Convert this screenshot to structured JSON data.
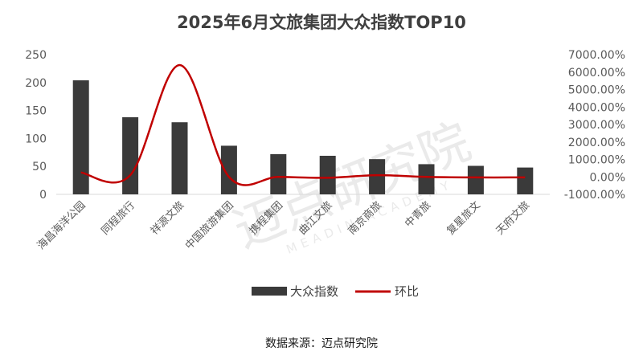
{
  "watermark": {
    "main": "迈点研究院",
    "sub": "MEADIN ACADEMY"
  },
  "source": "数据来源：迈点研究院",
  "colors": {
    "bar": "#3a3a3a",
    "line": "#c00000",
    "axis": "#d9d9d9",
    "text": "#595959"
  },
  "chart_data": {
    "type": "bar",
    "title": "2025年6月文旅集团大众指数TOP10",
    "categories": [
      "海昌海洋公园",
      "同程旅行",
      "祥源文旅",
      "中国旅游集团",
      "携程集团",
      "曲江文旅",
      "南京商旅",
      "中青旅",
      "复星旅文",
      "天府文旅"
    ],
    "series": [
      {
        "name": "大众指数",
        "type": "bar",
        "axis": "left",
        "values": [
          204,
          138,
          129,
          87,
          72,
          69,
          63,
          54,
          51,
          48
        ]
      },
      {
        "name": "环比",
        "type": "line",
        "axis": "right",
        "unit": "%",
        "values": [
          250,
          100,
          6400,
          0,
          0,
          -50,
          100,
          0,
          -30,
          -30
        ]
      }
    ],
    "y_left": {
      "min": 0,
      "max": 250,
      "ticks": [
        "0",
        "50",
        "100",
        "150",
        "200",
        "250"
      ]
    },
    "y_right": {
      "min": -1000,
      "max": 7000,
      "ticks": [
        "-1000.00%",
        "0.00%",
        "1000.00%",
        "2000.00%",
        "3000.00%",
        "4000.00%",
        "5000.00%",
        "6000.00%",
        "7000.00%"
      ]
    },
    "grid": false,
    "legend": "bottom"
  }
}
